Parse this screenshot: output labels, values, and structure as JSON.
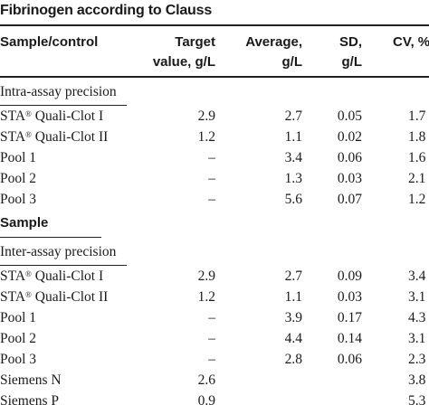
{
  "title": "Fibrinogen according to Clauss",
  "header": {
    "col_sample": "Sample/control",
    "col_target_line1": "Target",
    "col_target_line2": "value, g/L",
    "col_average_line1": "Average,",
    "col_average_line2": "g/L",
    "col_sd_line1": "SD,",
    "col_sd_line2": "g/L",
    "col_cv": "CV, %"
  },
  "intra": {
    "label": "Intra-assay precision",
    "rows": [
      {
        "name": "STA",
        "reg": "®",
        "suffix": " Quali-Clot I",
        "target": "2.9",
        "average": "2.7",
        "sd": "0.05",
        "cv": "1.7"
      },
      {
        "name": "STA",
        "reg": "®",
        "suffix": " Quali-Clot II",
        "target": "1.2",
        "average": "1.1",
        "sd": "0.02",
        "cv": "1.8"
      },
      {
        "name": "Pool 1",
        "reg": "",
        "suffix": "",
        "target": "–",
        "average": "3.4",
        "sd": "0.06",
        "cv": "1.6"
      },
      {
        "name": "Pool 2",
        "reg": "",
        "suffix": "",
        "target": "–",
        "average": "1.3",
        "sd": "0.03",
        "cv": "2.1"
      },
      {
        "name": "Pool 3",
        "reg": "",
        "suffix": "",
        "target": "–",
        "average": "5.6",
        "sd": "0.07",
        "cv": "1.2"
      }
    ]
  },
  "sample_label": "Sample",
  "inter": {
    "label": "Inter-assay precision",
    "rows": [
      {
        "name": "STA",
        "reg": "®",
        "suffix": " Quali-Clot I",
        "target": "2.9",
        "average": "2.7",
        "sd": "0.09",
        "cv": "3.4"
      },
      {
        "name": "STA",
        "reg": "®",
        "suffix": " Quali-Clot II",
        "target": "1.2",
        "average": "1.1",
        "sd": "0.03",
        "cv": "3.1"
      },
      {
        "name": "Pool 1",
        "reg": "",
        "suffix": "",
        "target": "–",
        "average": "3.9",
        "sd": "0.17",
        "cv": "4.3"
      },
      {
        "name": "Pool 2",
        "reg": "",
        "suffix": "",
        "target": "–",
        "average": "4.4",
        "sd": "0.14",
        "cv": "3.1"
      },
      {
        "name": "Pool 3",
        "reg": "",
        "suffix": "",
        "target": "–",
        "average": "2.8",
        "sd": "0.06",
        "cv": "2.3"
      },
      {
        "name": "Siemens N",
        "reg": "",
        "suffix": "",
        "target": "2.6",
        "average": "",
        "sd": "",
        "cv": "3.8"
      },
      {
        "name": "Siemens P",
        "reg": "",
        "suffix": "",
        "target": "0.9",
        "average": "",
        "sd": "",
        "cv": "5.3"
      }
    ]
  }
}
